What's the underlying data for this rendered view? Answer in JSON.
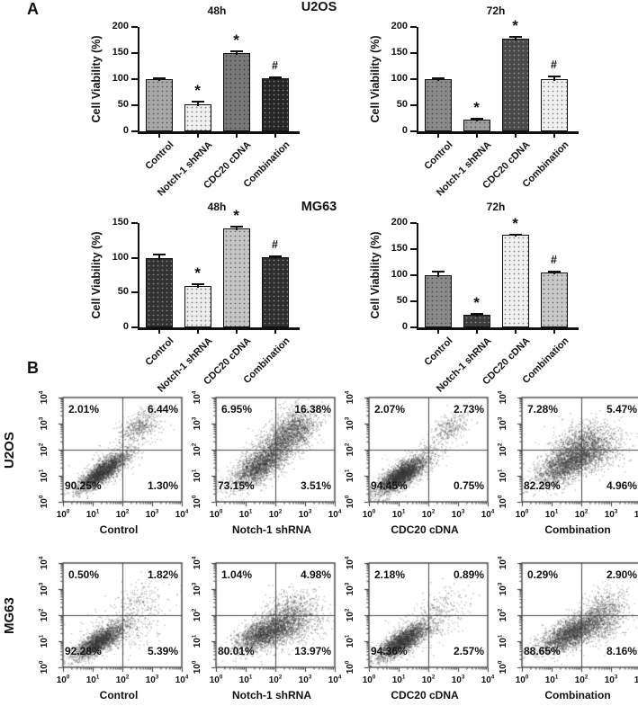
{
  "panels": {
    "a_label": "A",
    "b_label": "B"
  },
  "panel_a": {
    "row_titles": [
      "U2OS",
      "MG63"
    ]
  },
  "panel_b": {
    "row_labels": [
      "U2OS",
      "MG63"
    ]
  },
  "chart_data": [
    {
      "type": "bar",
      "panel": "A",
      "cell_line": "U2OS",
      "title": "48h",
      "ylabel": "Cell Viability (%)",
      "categories": [
        "Control",
        "Notch-1 shRNA",
        "CDC20 cDNA",
        "Combination"
      ],
      "values": [
        100,
        52,
        150,
        102
      ],
      "errors": [
        3,
        6,
        5,
        4
      ],
      "sig": [
        "",
        "*",
        "*",
        "#"
      ],
      "ylim": [
        0,
        200
      ],
      "yticks": [
        0,
        50,
        100,
        150,
        200
      ],
      "bar_colors": [
        "#a8a8a8",
        "#f0f0f0",
        "#787878",
        "#262626"
      ],
      "speckle": [
        "dark",
        "dark",
        "dark",
        "light"
      ]
    },
    {
      "type": "bar",
      "panel": "A",
      "cell_line": "U2OS",
      "title": "72h",
      "ylabel": "Cell Viability (%)",
      "categories": [
        "Control",
        "Notch-1 shRNA",
        "CDC20 cDNA",
        "Combination"
      ],
      "values": [
        100,
        23,
        178,
        100
      ],
      "errors": [
        3,
        3,
        4,
        7
      ],
      "sig": [
        "",
        "*",
        "*",
        "#"
      ],
      "ylim": [
        0,
        200
      ],
      "yticks": [
        0,
        50,
        100,
        150,
        200
      ],
      "bar_colors": [
        "#8a8a8a",
        "#9e9e9e",
        "#4a4a4a",
        "#f0f0f0"
      ],
      "speckle": [
        "dark",
        "dark",
        "light",
        "dark"
      ]
    },
    {
      "type": "bar",
      "panel": "A",
      "cell_line": "MG63",
      "title": "48h",
      "ylabel": "Cell Viability (%)",
      "categories": [
        "Control",
        "Notch-1 shRNA",
        "CDC20 cDNA",
        "Combination"
      ],
      "values": [
        100,
        60,
        142,
        101
      ],
      "errors": [
        6,
        3,
        4,
        2
      ],
      "sig": [
        "",
        "*",
        "*",
        "#"
      ],
      "ylim": [
        0,
        150
      ],
      "yticks": [
        0,
        50,
        100,
        150
      ],
      "bar_colors": [
        "#323232",
        "#ececec",
        "#c4c4c4",
        "#2e2e2e"
      ],
      "speckle": [
        "light",
        "dark",
        "dark",
        "light"
      ]
    },
    {
      "type": "bar",
      "panel": "A",
      "cell_line": "MG63",
      "title": "72h",
      "ylabel": "Cell Viability (%)",
      "categories": [
        "Control",
        "Notch-1 shRNA",
        "CDC20 cDNA",
        "Combination"
      ],
      "values": [
        100,
        24,
        177,
        105
      ],
      "errors": [
        8,
        3,
        2,
        4
      ],
      "sig": [
        "",
        "*",
        "*",
        "#"
      ],
      "ylim": [
        0,
        200
      ],
      "yticks": [
        0,
        50,
        100,
        150,
        200
      ],
      "bar_colors": [
        "#8a8a8a",
        "#3c3c3c",
        "#f0f0f0",
        "#c8c8c8"
      ],
      "speckle": [
        "dark",
        "light",
        "dark",
        "dark"
      ]
    },
    {
      "type": "scatter_flow",
      "panel": "B",
      "cell_line": "U2OS",
      "xlabel": "Control",
      "log_range": [
        0,
        4
      ],
      "tick_exponents": [
        0,
        1,
        2,
        3,
        4
      ],
      "quadrant_split_log": 2,
      "quadrants": {
        "tl": "2.01%",
        "tr": "6.44%",
        "bl": "90.25%",
        "br": "1.30%"
      },
      "points_color": "#3a3a3a",
      "clusters": [
        {
          "n": 2600,
          "cx": 1.3,
          "cy": 1.15,
          "maj": 0.52,
          "min": 0.16,
          "ang": 40
        },
        {
          "n": 420,
          "cx": 2.6,
          "cy": 2.95,
          "maj": 0.38,
          "min": 0.22,
          "ang": 35
        },
        {
          "n": 300,
          "cx": 1.9,
          "cy": 1.75,
          "maj": 0.75,
          "min": 0.3,
          "ang": 42
        }
      ]
    },
    {
      "type": "scatter_flow",
      "panel": "B",
      "cell_line": "U2OS",
      "xlabel": "Notch-1 shRNA",
      "log_range": [
        0,
        4
      ],
      "tick_exponents": [
        0,
        1,
        2,
        3,
        4
      ],
      "quadrant_split_log": 2,
      "quadrants": {
        "tl": "6.95%",
        "tr": "16.38%",
        "bl": "73.15%",
        "br": "3.51%"
      },
      "points_color": "#3a3a3a",
      "clusters": [
        {
          "n": 2100,
          "cx": 1.75,
          "cy": 1.75,
          "maj": 0.8,
          "min": 0.3,
          "ang": 42
        },
        {
          "n": 1200,
          "cx": 2.55,
          "cy": 2.8,
          "maj": 0.5,
          "min": 0.32,
          "ang": 35
        },
        {
          "n": 800,
          "cx": 1.35,
          "cy": 1.25,
          "maj": 0.45,
          "min": 0.2,
          "ang": 40
        }
      ]
    },
    {
      "type": "scatter_flow",
      "panel": "B",
      "cell_line": "U2OS",
      "xlabel": "CDC20 cDNA",
      "log_range": [
        0,
        4
      ],
      "tick_exponents": [
        0,
        1,
        2,
        3,
        4
      ],
      "quadrant_split_log": 2,
      "quadrants": {
        "tl": "2.07%",
        "tr": "2.73%",
        "bl": "94.45%",
        "br": "0.75%"
      },
      "points_color": "#3a3a3a",
      "clusters": [
        {
          "n": 3000,
          "cx": 1.08,
          "cy": 1.02,
          "maj": 0.5,
          "min": 0.18,
          "ang": 38
        },
        {
          "n": 280,
          "cx": 2.7,
          "cy": 2.85,
          "maj": 0.34,
          "min": 0.22,
          "ang": 35
        },
        {
          "n": 320,
          "cx": 1.7,
          "cy": 1.6,
          "maj": 0.7,
          "min": 0.3,
          "ang": 40
        }
      ]
    },
    {
      "type": "scatter_flow",
      "panel": "B",
      "cell_line": "U2OS",
      "xlabel": "Combination",
      "log_range": [
        0,
        4
      ],
      "tick_exponents": [
        0,
        1,
        2,
        3,
        4
      ],
      "quadrant_split_log": 2,
      "quadrants": {
        "tl": "7.28%",
        "tr": "5.47%",
        "bl": "82.29%",
        "br": "4.96%"
      },
      "points_color": "#3a3a3a",
      "clusters": [
        {
          "n": 2300,
          "cx": 1.55,
          "cy": 1.5,
          "maj": 0.62,
          "min": 0.3,
          "ang": 35
        },
        {
          "n": 900,
          "cx": 2.35,
          "cy": 2.0,
          "maj": 0.6,
          "min": 0.4,
          "ang": 22
        },
        {
          "n": 550,
          "cx": 1.95,
          "cy": 2.35,
          "maj": 0.5,
          "min": 0.35,
          "ang": 30
        }
      ]
    },
    {
      "type": "scatter_flow",
      "panel": "B",
      "cell_line": "MG63",
      "xlabel": "Control",
      "log_range": [
        0,
        4
      ],
      "tick_exponents": [
        0,
        1,
        2,
        3,
        4
      ],
      "quadrant_split_log": 2,
      "quadrants": {
        "tl": "0.50%",
        "tr": "1.82%",
        "bl": "92.28%",
        "br": "5.39%"
      },
      "points_color": "#3a3a3a",
      "clusters": [
        {
          "n": 2300,
          "cx": 1.2,
          "cy": 1.0,
          "maj": 0.5,
          "min": 0.18,
          "ang": 38
        },
        {
          "n": 420,
          "cx": 2.0,
          "cy": 1.5,
          "maj": 0.8,
          "min": 0.4,
          "ang": 30
        },
        {
          "n": 150,
          "cx": 2.5,
          "cy": 2.6,
          "maj": 0.45,
          "min": 0.3,
          "ang": 35
        }
      ]
    },
    {
      "type": "scatter_flow",
      "panel": "B",
      "cell_line": "MG63",
      "xlabel": "Notch-1 shRNA",
      "log_range": [
        0,
        4
      ],
      "tick_exponents": [
        0,
        1,
        2,
        3,
        4
      ],
      "quadrant_split_log": 2,
      "quadrants": {
        "tl": "1.04%",
        "tr": "4.98%",
        "bl": "80.01%",
        "br": "13.97%"
      },
      "points_color": "#3a3a3a",
      "clusters": [
        {
          "n": 2200,
          "cx": 1.6,
          "cy": 1.3,
          "maj": 0.55,
          "min": 0.25,
          "ang": 30
        },
        {
          "n": 800,
          "cx": 2.5,
          "cy": 1.55,
          "maj": 0.55,
          "min": 0.35,
          "ang": 20
        },
        {
          "n": 550,
          "cx": 2.5,
          "cy": 2.25,
          "maj": 0.5,
          "min": 0.35,
          "ang": 30
        }
      ]
    },
    {
      "type": "scatter_flow",
      "panel": "B",
      "cell_line": "MG63",
      "xlabel": "CDC20 cDNA",
      "log_range": [
        0,
        4
      ],
      "tick_exponents": [
        0,
        1,
        2,
        3,
        4
      ],
      "quadrant_split_log": 2,
      "quadrants": {
        "tl": "2.18%",
        "tr": "0.89%",
        "bl": "94.36%",
        "br": "2.57%"
      },
      "points_color": "#3a3a3a",
      "clusters": [
        {
          "n": 2600,
          "cx": 1.1,
          "cy": 1.0,
          "maj": 0.5,
          "min": 0.18,
          "ang": 38
        },
        {
          "n": 380,
          "cx": 1.9,
          "cy": 1.55,
          "maj": 0.75,
          "min": 0.35,
          "ang": 35
        },
        {
          "n": 100,
          "cx": 2.5,
          "cy": 2.5,
          "maj": 0.4,
          "min": 0.3,
          "ang": 30
        }
      ]
    },
    {
      "type": "scatter_flow",
      "panel": "B",
      "cell_line": "MG63",
      "xlabel": "Combination",
      "log_range": [
        0,
        4
      ],
      "tick_exponents": [
        0,
        1,
        2,
        3,
        4
      ],
      "quadrant_split_log": 2,
      "quadrants": {
        "tl": "0.29%",
        "tr": "2.90%",
        "bl": "88.65%",
        "br": "8.16%"
      },
      "points_color": "#3a3a3a",
      "clusters": [
        {
          "n": 2400,
          "cx": 1.6,
          "cy": 1.3,
          "maj": 0.6,
          "min": 0.24,
          "ang": 32
        },
        {
          "n": 700,
          "cx": 2.55,
          "cy": 1.7,
          "maj": 0.5,
          "min": 0.35,
          "ang": 30
        },
        {
          "n": 400,
          "cx": 2.7,
          "cy": 2.4,
          "maj": 0.45,
          "min": 0.3,
          "ang": 35
        }
      ]
    }
  ]
}
